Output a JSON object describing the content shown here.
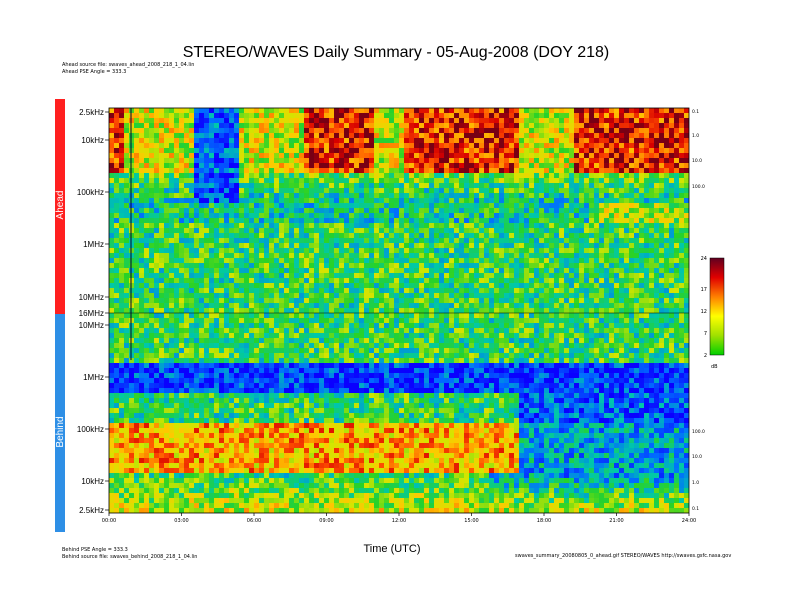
{
  "header": {
    "title": "STEREO/WAVES Daily Summary - 05-Aug-2008 (DOY 218)",
    "ahead_source": "Ahead source file: swaves_ahead_2008_218_1_04.lin",
    "ahead_pse": "Ahead PSE Angle = 333.3",
    "behind_pse": "Behind PSE Angle = 333.3",
    "behind_source": "Behind source file: swaves_behind_2008_218_1_04.lin",
    "footer_right": "swaves_summary_20080805_0_ahead.gif  STEREO/WAVES  http://swaves.gsfc.nasa.gov"
  },
  "colors": {
    "ahead_bar": "#ff2020",
    "behind_bar": "#2e8fe6",
    "low": "#0a00ff",
    "high": "#7a0000"
  },
  "chart_data": {
    "type": "heatmap",
    "title": "STEREO/WAVES Daily Summary - 05-Aug-2008 (DOY 218)",
    "xlabel": "Time (UTC)",
    "ylabel": "",
    "x_ticks": [
      "00:00",
      "03:00",
      "06:00",
      "09:00",
      "12:00",
      "15:00",
      "18:00",
      "21:00",
      "24:00"
    ],
    "panels": [
      {
        "name": "Ahead",
        "y_ticks": [
          "2.5kHz",
          "10kHz",
          "100kHz",
          "1MHz",
          "10MHz",
          "16MHz"
        ],
        "right_scale": [
          "0.1",
          "1.0",
          "10.0",
          "100.0"
        ]
      },
      {
        "name": "Behind",
        "y_ticks": [
          "10MHz",
          "1MHz",
          "100kHz",
          "10kHz",
          "2.5kHz"
        ],
        "right_scale": [
          "100.0",
          "10.0",
          "1.0",
          "0.1"
        ]
      }
    ],
    "colorbar": {
      "ticks": [
        "24",
        "17",
        "12",
        "7",
        "2"
      ],
      "unit": "dB",
      "range": [
        2,
        24
      ]
    }
  }
}
